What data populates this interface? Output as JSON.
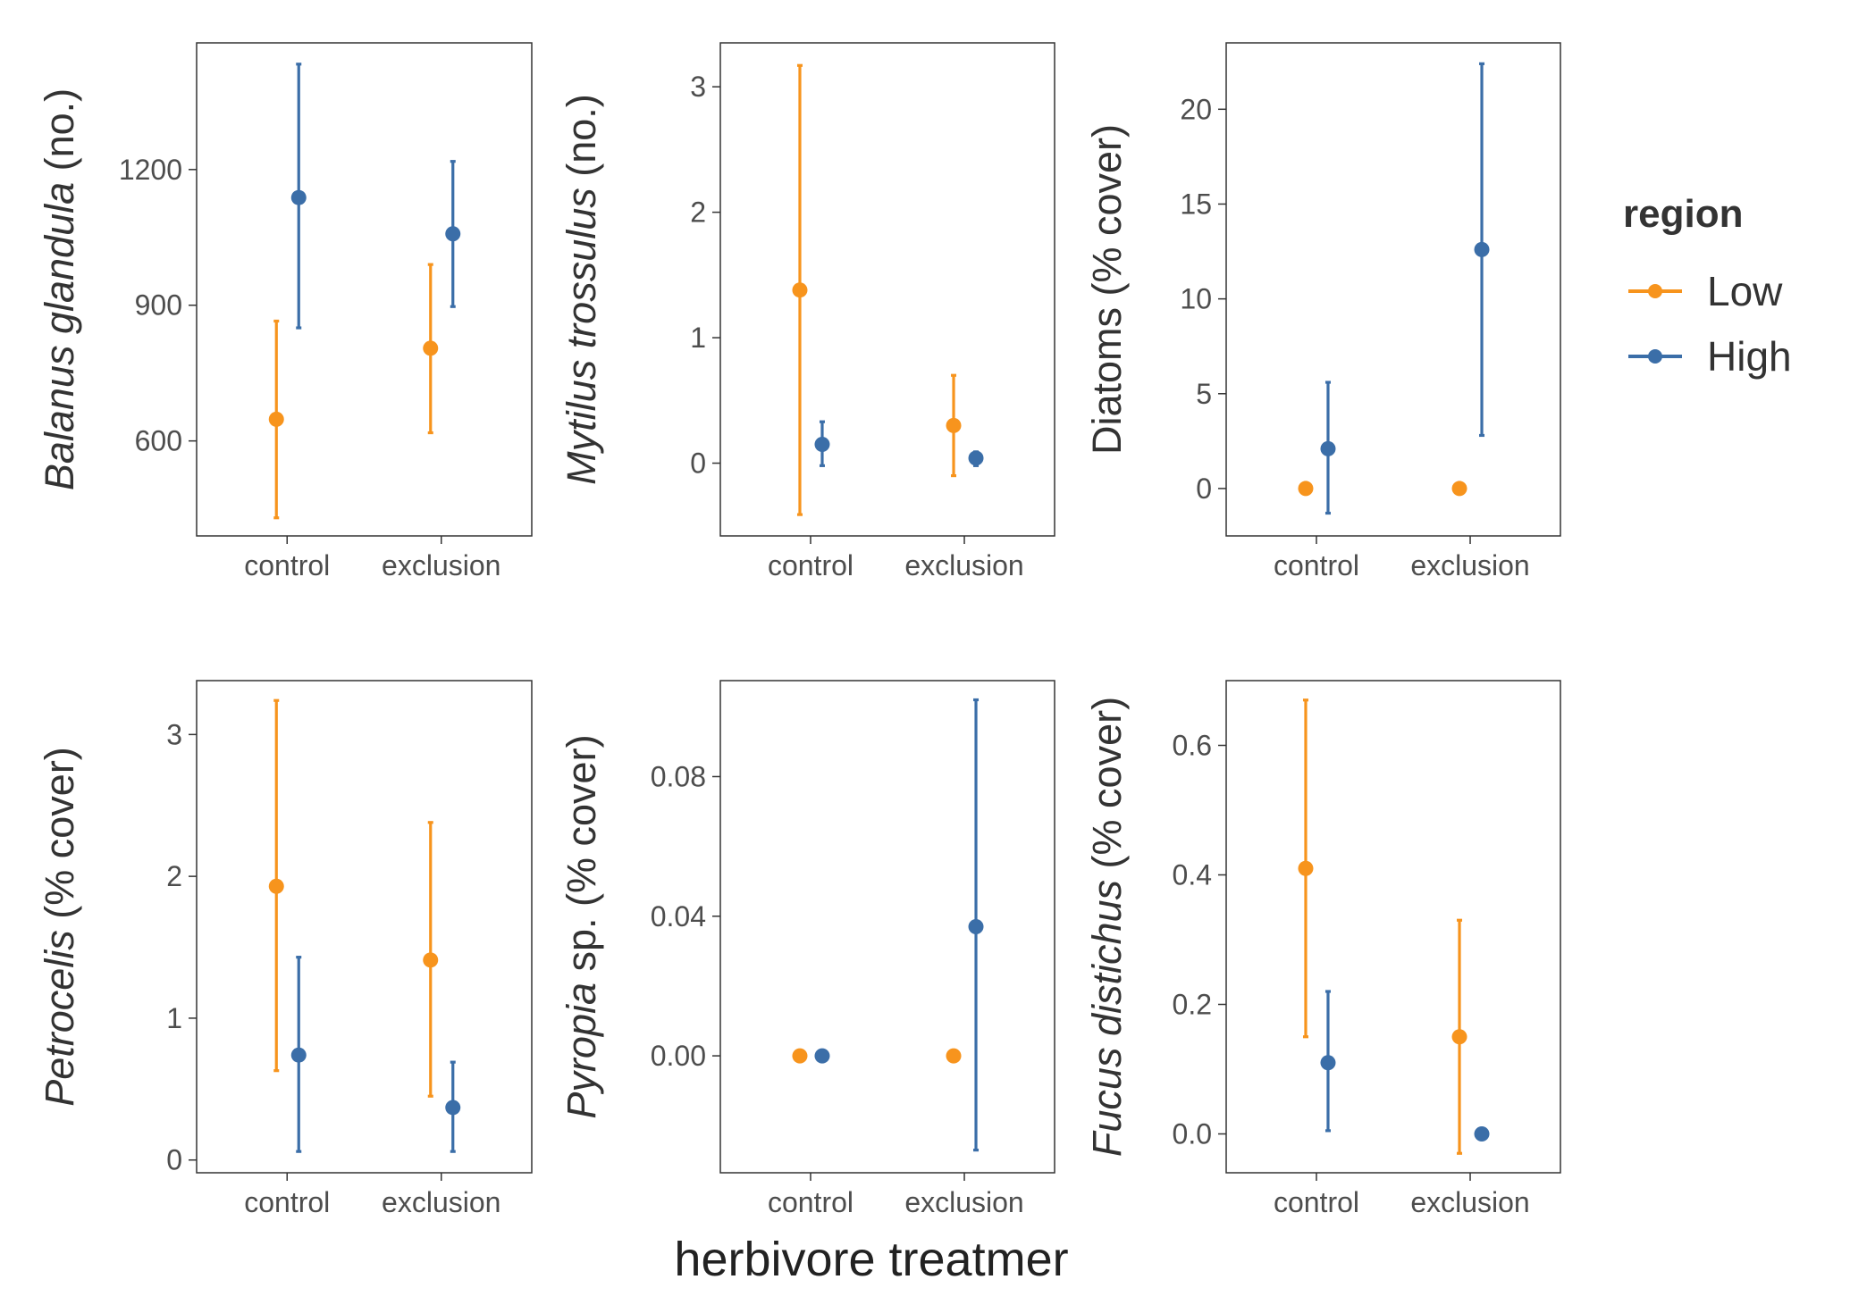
{
  "xlabel": "herbivore treatmer",
  "categories": [
    "control",
    "exclusion"
  ],
  "legend": {
    "title": "region",
    "position": "right",
    "entries": [
      {
        "label": "Low",
        "color": "#F7941D"
      },
      {
        "label": "High",
        "color": "#3B6EA8"
      }
    ]
  },
  "chart_data": [
    {
      "type": "scatter",
      "error_bars": true,
      "ylabel": {
        "italic": "Balanus glandula",
        "plain": " (no.)"
      },
      "ylim": [
        390,
        1480
      ],
      "yticks": [
        600,
        900,
        1200
      ],
      "categories": [
        "control",
        "exclusion"
      ],
      "series": [
        {
          "name": "Low",
          "color": "#F7941D",
          "values": [
            648,
            805
          ],
          "lower": [
            430,
            618
          ],
          "upper": [
            865,
            990
          ]
        },
        {
          "name": "High",
          "color": "#3B6EA8",
          "values": [
            1138,
            1058
          ],
          "lower": [
            850,
            897
          ],
          "upper": [
            1433,
            1218
          ]
        }
      ]
    },
    {
      "type": "scatter",
      "error_bars": true,
      "ylabel": {
        "italic": "Mytilus trossulus",
        "plain": " (no.)"
      },
      "ylim": [
        -0.58,
        3.35
      ],
      "yticks": [
        0,
        1,
        2,
        3
      ],
      "categories": [
        "control",
        "exclusion"
      ],
      "series": [
        {
          "name": "Low",
          "color": "#F7941D",
          "values": [
            1.38,
            0.3
          ],
          "lower": [
            -0.41,
            -0.1
          ],
          "upper": [
            3.17,
            0.7
          ]
        },
        {
          "name": "High",
          "color": "#3B6EA8",
          "values": [
            0.15,
            0.04
          ],
          "lower": [
            -0.02,
            -0.02
          ],
          "upper": [
            0.33,
            0.09
          ]
        }
      ]
    },
    {
      "type": "scatter",
      "error_bars": true,
      "ylabel": {
        "italic": "",
        "plain": "Diatoms (% cover)"
      },
      "ylim": [
        -2.5,
        23.5
      ],
      "yticks": [
        0,
        5,
        10,
        15,
        20
      ],
      "categories": [
        "control",
        "exclusion"
      ],
      "series": [
        {
          "name": "Low",
          "color": "#F7941D",
          "values": [
            0,
            0
          ],
          "lower": [
            null,
            null
          ],
          "upper": [
            null,
            null
          ]
        },
        {
          "name": "High",
          "color": "#3B6EA8",
          "values": [
            2.1,
            12.6
          ],
          "lower": [
            -1.3,
            2.8
          ],
          "upper": [
            5.6,
            22.4
          ]
        }
      ]
    },
    {
      "type": "scatter",
      "error_bars": true,
      "ylabel": {
        "italic": "Petrocelis",
        "plain": " (% cover)"
      },
      "ylim": [
        -0.09,
        3.38
      ],
      "yticks": [
        0,
        1,
        2,
        3
      ],
      "categories": [
        "control",
        "exclusion"
      ],
      "series": [
        {
          "name": "Low",
          "color": "#F7941D",
          "values": [
            1.93,
            1.41
          ],
          "lower": [
            0.63,
            0.45
          ],
          "upper": [
            3.24,
            2.38
          ]
        },
        {
          "name": "High",
          "color": "#3B6EA8",
          "values": [
            0.74,
            0.37
          ],
          "lower": [
            0.06,
            0.06
          ],
          "upper": [
            1.43,
            0.69
          ]
        }
      ]
    },
    {
      "type": "scatter",
      "error_bars": true,
      "ylabel": {
        "italic": "Pyropia",
        "plain": " sp. (% cover)"
      },
      "ylim": [
        -0.0335,
        0.1075
      ],
      "yticks": [
        0.0,
        0.04,
        0.08
      ],
      "tick_labels": [
        "0.00",
        "0.04",
        "0.08"
      ],
      "categories": [
        "control",
        "exclusion"
      ],
      "series": [
        {
          "name": "Low",
          "color": "#F7941D",
          "values": [
            0,
            0
          ],
          "lower": [
            null,
            null
          ],
          "upper": [
            null,
            null
          ]
        },
        {
          "name": "High",
          "color": "#3B6EA8",
          "values": [
            0,
            0.037
          ],
          "lower": [
            null,
            -0.027
          ],
          "upper": [
            null,
            0.102
          ]
        }
      ]
    },
    {
      "type": "scatter",
      "error_bars": true,
      "ylabel": {
        "italic": "Fucus distichus",
        "plain": " (% cover)"
      },
      "ylim": [
        -0.06,
        0.7
      ],
      "yticks": [
        0.0,
        0.2,
        0.4,
        0.6
      ],
      "tick_labels": [
        "0.0",
        "0.2",
        "0.4",
        "0.6"
      ],
      "categories": [
        "control",
        "exclusion"
      ],
      "series": [
        {
          "name": "Low",
          "color": "#F7941D",
          "values": [
            0.41,
            0.15
          ],
          "lower": [
            0.15,
            -0.03
          ],
          "upper": [
            0.67,
            0.33
          ]
        },
        {
          "name": "High",
          "color": "#3B6EA8",
          "values": [
            0.11,
            0.0
          ],
          "lower": [
            0.005,
            null
          ],
          "upper": [
            0.22,
            null
          ]
        }
      ]
    }
  ]
}
